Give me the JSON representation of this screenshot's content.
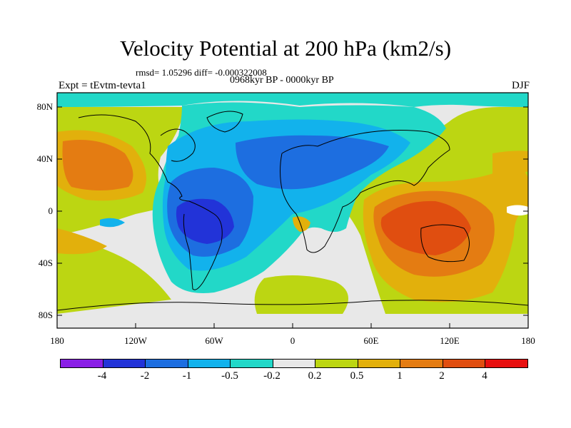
{
  "title": "Velocity Potential at 200 hPa (km2/s)",
  "stats": "rmsd= 1.05296 diff= -0.000322008",
  "period": "0968kyr BP - 0000kyr BP",
  "experiment": "Expt = tEvtm-tevta1",
  "season": "DJF",
  "map": {
    "lat_ticks": [
      "80N",
      "40N",
      "0",
      "40S",
      "80S"
    ],
    "lon_ticks": [
      "180",
      "120W",
      "60W",
      "0",
      "60E",
      "120E",
      "180"
    ]
  },
  "colorbar": {
    "labels": [
      "-4",
      "-2",
      "-1",
      "-0.5",
      "-0.2",
      "0.2",
      "0.5",
      "1",
      "2",
      "4"
    ],
    "colors": [
      "#8a1ee6",
      "#2233d8",
      "#1d6ee0",
      "#12b2ec",
      "#22d8c8",
      "#e8e8e8",
      "#bcd612",
      "#e2b00c",
      "#e47c12",
      "#e04e10",
      "#e81010"
    ]
  }
}
